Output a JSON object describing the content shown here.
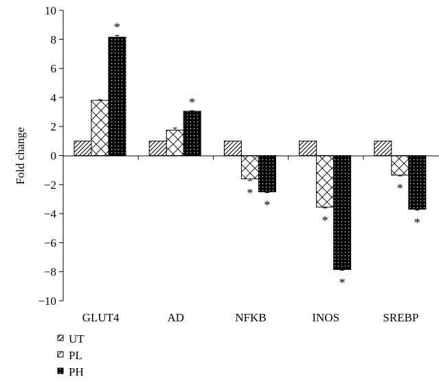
{
  "chart_data": {
    "type": "bar",
    "title": "",
    "xlabel": "",
    "ylabel": "Fold change",
    "ylim": [
      -10,
      10
    ],
    "yticks": [
      10,
      8,
      6,
      4,
      2,
      0,
      -2,
      -4,
      -6,
      -8,
      -10
    ],
    "ytick_labels": [
      "10",
      "8",
      "6",
      "4",
      "2",
      "0",
      "−2",
      "−4",
      "−6",
      "−8",
      "−10"
    ],
    "categories": [
      "GLUT4",
      "AD",
      "NFKB",
      "INOS",
      "SREBP"
    ],
    "series": [
      {
        "name": "UT",
        "pattern": "diagonal-lines",
        "values": [
          1,
          1,
          1,
          1,
          1
        ],
        "errors": [
          0,
          0,
          0,
          0,
          0
        ],
        "significant": [
          false,
          false,
          false,
          false,
          false
        ]
      },
      {
        "name": "PL",
        "pattern": "crosshatch",
        "values": [
          3.8,
          1.75,
          -1.6,
          -3.55,
          -1.35
        ],
        "errors": [
          0.05,
          0.15,
          0.12,
          0.06,
          0.05
        ],
        "significant": [
          false,
          false,
          true,
          true,
          true
        ]
      },
      {
        "name": "PH",
        "pattern": "dotted-black",
        "values": [
          8.15,
          3.05,
          -2.5,
          -7.85,
          -3.7
        ],
        "errors": [
          0.12,
          0.04,
          0.05,
          0.05,
          0.06
        ],
        "significant": [
          true,
          true,
          true,
          true,
          true
        ]
      }
    ],
    "significance_marker": "*",
    "grid": false,
    "legend_position": "bottom-left"
  }
}
